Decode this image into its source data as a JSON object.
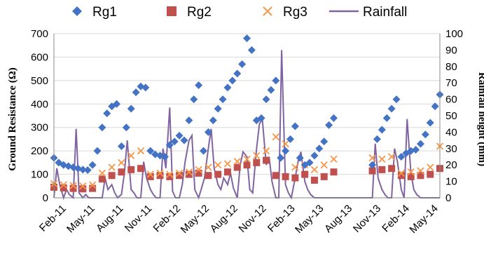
{
  "chart_data": {
    "type": "scatter",
    "title": "",
    "ylabel": "Ground Resistance (Ω)",
    "y2label": "Rainfall height (mm)",
    "ylim": [
      0,
      700
    ],
    "y2lim": [
      0,
      100
    ],
    "yticks": [
      "0",
      "100",
      "200",
      "300",
      "400",
      "500",
      "600",
      "700"
    ],
    "y2ticks": [
      "0",
      "10",
      "20",
      "30",
      "40",
      "50",
      "60",
      "70",
      "80",
      "90",
      "100"
    ],
    "xticks": [
      "Feb-11",
      "May-11",
      "Aug-11",
      "Nov-11",
      "Feb-12",
      "May-12",
      "Aug-12",
      "Nov-12",
      "Feb-13",
      "May-13",
      "Aug-13",
      "Nov-13",
      "Feb-14",
      "May-14"
    ],
    "legend_position": "top",
    "grid": "horizontal",
    "series": [
      {
        "name": "Rg1",
        "marker": "diamond",
        "color": "#4472C4",
        "x": [
          0.0,
          0.5,
          1.0,
          1.5,
          2.0,
          2.5,
          3.0,
          3.5,
          4.0,
          4.5,
          5.0,
          5.5,
          6.0,
          6.5,
          7.0,
          7.5,
          8.0,
          8.5,
          9.0,
          9.5,
          10.0,
          10.5,
          11.0,
          11.5,
          12.0,
          12.5,
          13.0,
          13.5,
          14.0,
          14.5,
          15.0,
          15.5,
          16.0,
          16.5,
          17.0,
          17.5,
          18.0,
          18.5,
          19.0,
          19.5,
          20.0,
          20.5,
          21.0,
          21.5,
          22.0,
          22.5,
          23.0,
          23.5,
          24.0,
          24.5,
          25.0,
          25.5,
          26.0,
          26.5,
          27.0,
          27.5,
          28.0,
          28.5,
          29.0,
          33.0,
          33.5,
          34.0,
          34.5,
          35.0,
          35.5,
          36.0,
          36.5,
          37.0,
          37.5,
          38.0,
          38.5,
          39.0,
          39.5,
          40.0
        ],
        "y": [
          170,
          150,
          140,
          135,
          130,
          125,
          120,
          118,
          140,
          200,
          300,
          360,
          390,
          400,
          220,
          300,
          380,
          450,
          475,
          470,
          200,
          185,
          180,
          175,
          225,
          240,
          265,
          245,
          330,
          420,
          480,
          200,
          280,
          330,
          380,
          420,
          470,
          500,
          530,
          570,
          680,
          630,
          330,
          340,
          420,
          460,
          500,
          170,
          200,
          250,
          305,
          170,
          140,
          150,
          180,
          210,
          240,
          310,
          340,
          140,
          250,
          290,
          340,
          380,
          420,
          175,
          190,
          200,
          205,
          230,
          270,
          320,
          390,
          440
        ]
      },
      {
        "name": "Rg2",
        "marker": "square",
        "color": "#C0504D",
        "x": [
          0.0,
          1.0,
          2.0,
          3.0,
          4.0,
          5.0,
          6.0,
          7.0,
          8.0,
          9.0,
          10.0,
          11.0,
          12.0,
          13.0,
          14.0,
          15.0,
          16.0,
          17.0,
          18.0,
          19.0,
          20.0,
          21.0,
          22.0,
          23.0,
          24.0,
          25.0,
          26.0,
          27.0,
          28.0,
          29.0,
          33.0,
          34.0,
          35.0,
          36.0,
          37.0,
          38.0,
          39.0,
          40.0
        ],
        "y": [
          45,
          42,
          40,
          38,
          40,
          80,
          95,
          110,
          120,
          125,
          90,
          95,
          90,
          95,
          100,
          105,
          95,
          100,
          110,
          130,
          140,
          150,
          160,
          95,
          90,
          85,
          100,
          75,
          90,
          110,
          115,
          120,
          125,
          95,
          90,
          95,
          100,
          125
        ]
      },
      {
        "name": "Rg3",
        "marker": "x",
        "color": "#F79646",
        "x": [
          0.0,
          1.0,
          2.0,
          3.0,
          4.0,
          5.0,
          6.0,
          7.0,
          8.0,
          9.0,
          10.0,
          11.0,
          12.0,
          13.0,
          14.0,
          15.0,
          16.0,
          17.0,
          18.0,
          19.0,
          20.0,
          21.0,
          22.0,
          23.0,
          24.0,
          25.0,
          26.0,
          27.0,
          28.0,
          29.0,
          33.0,
          34.0,
          35.0,
          36.0,
          37.0,
          38.0,
          39.0,
          40.0
        ],
        "y": [
          60,
          55,
          52,
          50,
          55,
          105,
          130,
          150,
          180,
          200,
          100,
          105,
          100,
          105,
          110,
          120,
          130,
          140,
          145,
          155,
          165,
          180,
          200,
          260,
          230,
          130,
          140,
          120,
          140,
          165,
          170,
          165,
          175,
          105,
          110,
          115,
          130,
          220
        ]
      },
      {
        "name": "Rainfall",
        "marker": "line",
        "color": "#8064A2",
        "axis": "right",
        "x": [
          0.0,
          0.3,
          0.6,
          1.0,
          1.3,
          1.6,
          2.0,
          2.3,
          2.6,
          3.0,
          3.3,
          3.6,
          4.0,
          4.3,
          4.6,
          5.0,
          5.3,
          5.6,
          6.0,
          6.3,
          6.6,
          7.0,
          7.3,
          7.6,
          8.0,
          8.3,
          8.6,
          9.0,
          9.3,
          9.6,
          10.0,
          10.3,
          10.6,
          11.0,
          11.3,
          11.6,
          12.0,
          12.3,
          12.6,
          13.0,
          13.3,
          13.6,
          14.0,
          14.3,
          14.6,
          15.0,
          15.3,
          15.6,
          16.0,
          16.3,
          16.6,
          17.0,
          17.3,
          17.6,
          18.0,
          18.3,
          18.6,
          19.0,
          19.3,
          19.6,
          20.0,
          20.3,
          20.6,
          21.0,
          21.3,
          21.6,
          22.0,
          22.3,
          22.6,
          23.0,
          23.3,
          23.6,
          24.0,
          24.3,
          24.6,
          25.0,
          25.3,
          25.6,
          26.0,
          26.3,
          26.6,
          27.0,
          27.3,
          27.6,
          28.0,
          28.3,
          28.6,
          29.0,
          29.3,
          29.6,
          30.0,
          31.0,
          32.0,
          33.0,
          33.3,
          33.6,
          34.0,
          34.3,
          34.6,
          35.0,
          35.3,
          35.6,
          36.0,
          36.3,
          36.6,
          37.0,
          37.3,
          37.6,
          38.0,
          38.3,
          38.6,
          39.0,
          39.3,
          39.6,
          40.0
        ],
        "y": [
          0,
          18,
          8,
          0,
          5,
          2,
          0,
          42,
          3,
          0,
          2,
          0,
          0,
          0,
          0,
          0,
          12,
          5,
          8,
          3,
          0,
          2,
          15,
          35,
          5,
          3,
          0,
          0,
          22,
          12,
          5,
          2,
          0,
          0,
          30,
          18,
          55,
          4,
          0,
          0,
          8,
          22,
          35,
          38,
          5,
          0,
          6,
          12,
          30,
          42,
          18,
          8,
          5,
          12,
          8,
          15,
          6,
          0,
          20,
          28,
          25,
          5,
          3,
          30,
          45,
          48,
          20,
          25,
          10,
          0,
          0,
          90,
          8,
          3,
          0,
          12,
          22,
          28,
          10,
          5,
          2,
          0,
          0,
          0,
          0,
          0,
          0,
          0,
          0,
          0,
          0,
          0,
          0,
          0,
          33,
          12,
          5,
          2,
          0,
          0,
          30,
          22,
          5,
          0,
          48,
          15,
          5,
          2,
          0,
          0,
          0,
          0,
          0,
          0,
          0
        ]
      }
    ]
  }
}
